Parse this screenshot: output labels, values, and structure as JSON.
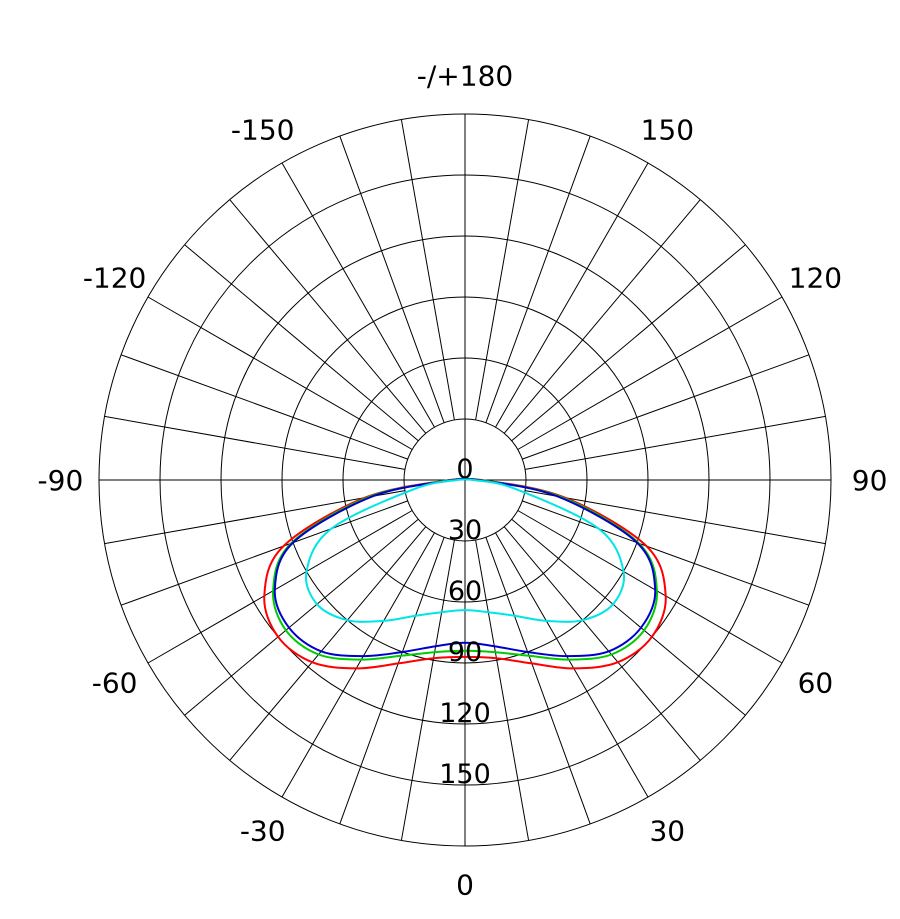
{
  "chart_data": {
    "type": "polar",
    "title": "",
    "radial_axis": {
      "range": [
        0,
        180
      ],
      "ring_values": [
        30,
        60,
        90,
        120,
        150,
        180
      ],
      "tick_labels": [
        "0",
        "30",
        "60",
        "90",
        "120",
        "150"
      ]
    },
    "angular_axis": {
      "zero_direction": "down",
      "spoke_step_deg": 10,
      "tick_labels": [
        {
          "angle": 0,
          "label": "0"
        },
        {
          "angle": 30,
          "label": "30"
        },
        {
          "angle": 60,
          "label": "60"
        },
        {
          "angle": 90,
          "label": "90"
        },
        {
          "angle": 120,
          "label": "120"
        },
        {
          "angle": 150,
          "label": "150"
        },
        {
          "angle": 180,
          "label": "-/+180"
        },
        {
          "angle": -150,
          "label": "-150"
        },
        {
          "angle": -120,
          "label": "-120"
        },
        {
          "angle": -90,
          "label": "-90"
        },
        {
          "angle": -60,
          "label": "-60"
        },
        {
          "angle": -30,
          "label": "-30"
        }
      ]
    },
    "grid": true,
    "legend": "none",
    "angles": [
      -90,
      -80,
      -70,
      -60,
      -50,
      -40,
      -30,
      -20,
      -10,
      0,
      10,
      20,
      30,
      40,
      50,
      60,
      70,
      80,
      90
    ],
    "series": [
      {
        "color": "#ff0000",
        "values": [
          8,
          50,
          95,
          114,
          120,
          117,
          107,
          96,
          89,
          87,
          89,
          96,
          107,
          117,
          120,
          114,
          95,
          50,
          8
        ]
      },
      {
        "color": "#00cc00",
        "values": [
          7,
          48,
          91,
          109,
          115,
          112,
          102,
          92,
          86,
          84,
          86,
          92,
          102,
          112,
          115,
          109,
          91,
          48,
          7
        ]
      },
      {
        "color": "#0000cc",
        "values": [
          6,
          46,
          90,
          108,
          113,
          110,
          100,
          90,
          83,
          80,
          83,
          90,
          100,
          110,
          113,
          108,
          90,
          46,
          6
        ]
      },
      {
        "color": "#00e5e5",
        "values": [
          4,
          25,
          70,
          90,
          95,
          90,
          80,
          71,
          66,
          64,
          66,
          71,
          80,
          90,
          95,
          90,
          70,
          25,
          4
        ]
      }
    ]
  }
}
